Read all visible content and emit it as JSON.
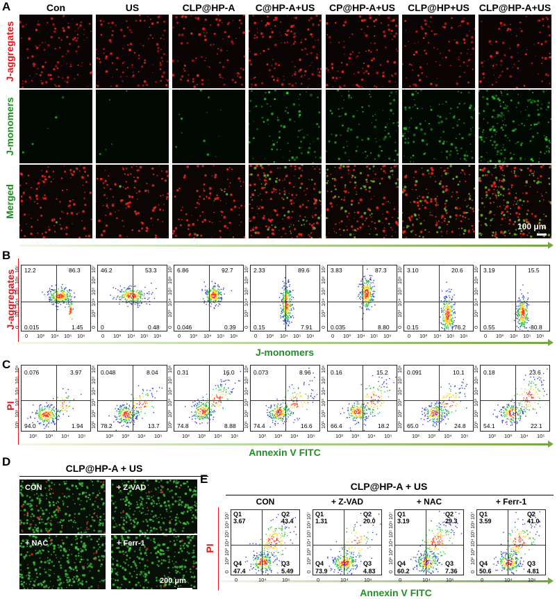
{
  "panelA": {
    "letter": "A",
    "columns": [
      "Con",
      "US",
      "CLP@HP-A",
      "C@HP-A+US",
      "CP@HP-A+US",
      "CLP@HP+US",
      "CLP@HP-A+US"
    ],
    "rows": [
      "J-aggregates",
      "J-monomers",
      "Merged"
    ],
    "scale": "100 μm"
  },
  "panelB": {
    "letter": "B",
    "ylabel": "J-aggregates",
    "xlabel": "J-monomers",
    "xticks": [
      "0",
      "10³",
      "10⁴",
      "10⁵",
      "10⁶"
    ],
    "yticks": [
      "0",
      "10³",
      "10⁴",
      "10⁵",
      "10⁶",
      "10⁷"
    ],
    "plots": [
      {
        "ul": "12.2",
        "ur": "86.3",
        "ll": "0.015",
        "lr": "1.45"
      },
      {
        "ul": "46.2",
        "ur": "53.3",
        "ll": "0",
        "lr": "0.48"
      },
      {
        "ul": "6.86",
        "ur": "92.7",
        "ll": "0.046",
        "lr": "0.39"
      },
      {
        "ul": "2.33",
        "ur": "89.6",
        "ll": "0.15",
        "lr": "7.91"
      },
      {
        "ul": "3.83",
        "ur": "87.3",
        "ll": "0.035",
        "lr": "8.80"
      },
      {
        "ul": "3.10",
        "ur": "20.6",
        "ll": "0.15",
        "lr": "76.2"
      },
      {
        "ul": "3.19",
        "ur": "15.5",
        "ll": "0.55",
        "lr": "80.8"
      }
    ]
  },
  "panelC": {
    "letter": "C",
    "ylabel": "PI",
    "xlabel": "Annexin V FITC",
    "xticks": [
      "10²",
      "10³",
      "10⁴",
      "10⁵"
    ],
    "yticks": [
      "10¹",
      "10²",
      "10³",
      "10⁴",
      "10⁵",
      "10⁶"
    ],
    "plots": [
      {
        "ul": "0.076",
        "ur": "3.97",
        "ll": "94.0",
        "lr": "1.94"
      },
      {
        "ul": "0.048",
        "ur": "8.04",
        "ll": "78.2",
        "lr": "13.7"
      },
      {
        "ul": "0.31",
        "ur": "16.0",
        "ll": "74.8",
        "lr": "8.88"
      },
      {
        "ul": "0.073",
        "ur": "8.96",
        "ll": "74.4",
        "lr": "16.6"
      },
      {
        "ul": "0.16",
        "ur": "15.2",
        "ll": "66.4",
        "lr": "18.2"
      },
      {
        "ul": "0.091",
        "ur": "10.1",
        "ll": "65.0",
        "lr": "24.8"
      },
      {
        "ul": "0.18",
        "ur": "23.6",
        "ll": "54.1",
        "lr": "22.1"
      }
    ]
  },
  "panelD": {
    "letter": "D",
    "title": "CLP@HP-A + US",
    "labels": [
      "CON",
      "+ Z-VAD",
      "+ NAC",
      "+ Ferr-1"
    ],
    "scale": "200 μm"
  },
  "panelE": {
    "letter": "E",
    "title": "CLP@HP-A + US",
    "ylabel": "PI",
    "xlabel": "Annexin V FITC",
    "xticks": [
      "0",
      "10⁴",
      "10⁶"
    ],
    "yticks": [
      "0",
      "10²",
      "10³",
      "10⁴",
      "10⁵",
      "10⁶",
      "10⁷"
    ],
    "plots": [
      {
        "name": "CON",
        "q1": "3.67",
        "q2": "43.4",
        "q3": "5.49",
        "q4": "47.4"
      },
      {
        "name": "+ Z-VAD",
        "q1": "1.31",
        "q2": "20.0",
        "q3": "4.83",
        "q4": "73.9"
      },
      {
        "name": "+ NAC",
        "q1": "3.19",
        "q2": "29.3",
        "q3": "7.36",
        "q4": "60.2"
      },
      {
        "name": "+ Ferr-1",
        "q1": "3.59",
        "q2": "41.0",
        "q3": "4.81",
        "q4": "50.6"
      }
    ],
    "qnames": [
      "Q1",
      "Q2",
      "Q3",
      "Q4"
    ]
  },
  "chart_data": [
    {
      "type": "scatter",
      "panel": "B",
      "xlabel": "J-monomers",
      "ylabel": "J-aggregates",
      "series": [
        {
          "name": "Con",
          "quadrants": [
            12.2,
            86.3,
            0.015,
            1.45
          ]
        },
        {
          "name": "US",
          "quadrants": [
            46.2,
            53.3,
            0,
            0.48
          ]
        },
        {
          "name": "CLP@HP-A",
          "quadrants": [
            6.86,
            92.7,
            0.046,
            0.39
          ]
        },
        {
          "name": "C@HP-A+US",
          "quadrants": [
            2.33,
            89.6,
            0.15,
            7.91
          ]
        },
        {
          "name": "CP@HP-A+US",
          "quadrants": [
            3.83,
            87.3,
            0.035,
            8.8
          ]
        },
        {
          "name": "CLP@HP+US",
          "quadrants": [
            3.1,
            20.6,
            0.15,
            76.2
          ]
        },
        {
          "name": "CLP@HP-A+US",
          "quadrants": [
            3.19,
            15.5,
            0.55,
            80.8
          ]
        }
      ]
    },
    {
      "type": "scatter",
      "panel": "C",
      "xlabel": "Annexin V FITC",
      "ylabel": "PI",
      "series": [
        {
          "name": "Con",
          "quadrants": [
            0.076,
            3.97,
            94.0,
            1.94
          ]
        },
        {
          "name": "US",
          "quadrants": [
            0.048,
            8.04,
            78.2,
            13.7
          ]
        },
        {
          "name": "CLP@HP-A",
          "quadrants": [
            0.31,
            16.0,
            74.8,
            8.88
          ]
        },
        {
          "name": "C@HP-A+US",
          "quadrants": [
            0.073,
            8.96,
            74.4,
            16.6
          ]
        },
        {
          "name": "CP@HP-A+US",
          "quadrants": [
            0.16,
            15.2,
            66.4,
            18.2
          ]
        },
        {
          "name": "CLP@HP+US",
          "quadrants": [
            0.091,
            10.1,
            65.0,
            24.8
          ]
        },
        {
          "name": "CLP@HP-A+US",
          "quadrants": [
            0.18,
            23.6,
            54.1,
            22.1
          ]
        }
      ]
    },
    {
      "type": "scatter",
      "panel": "E",
      "xlabel": "Annexin V FITC",
      "ylabel": "PI",
      "series": [
        {
          "name": "CON",
          "quadrants": [
            3.67,
            43.4,
            5.49,
            47.4
          ]
        },
        {
          "name": "+ Z-VAD",
          "quadrants": [
            1.31,
            20.0,
            4.83,
            73.9
          ]
        },
        {
          "name": "+ NAC",
          "quadrants": [
            3.19,
            29.3,
            7.36,
            60.2
          ]
        },
        {
          "name": "+ Ferr-1",
          "quadrants": [
            3.59,
            41.0,
            4.81,
            50.6
          ]
        }
      ]
    }
  ]
}
